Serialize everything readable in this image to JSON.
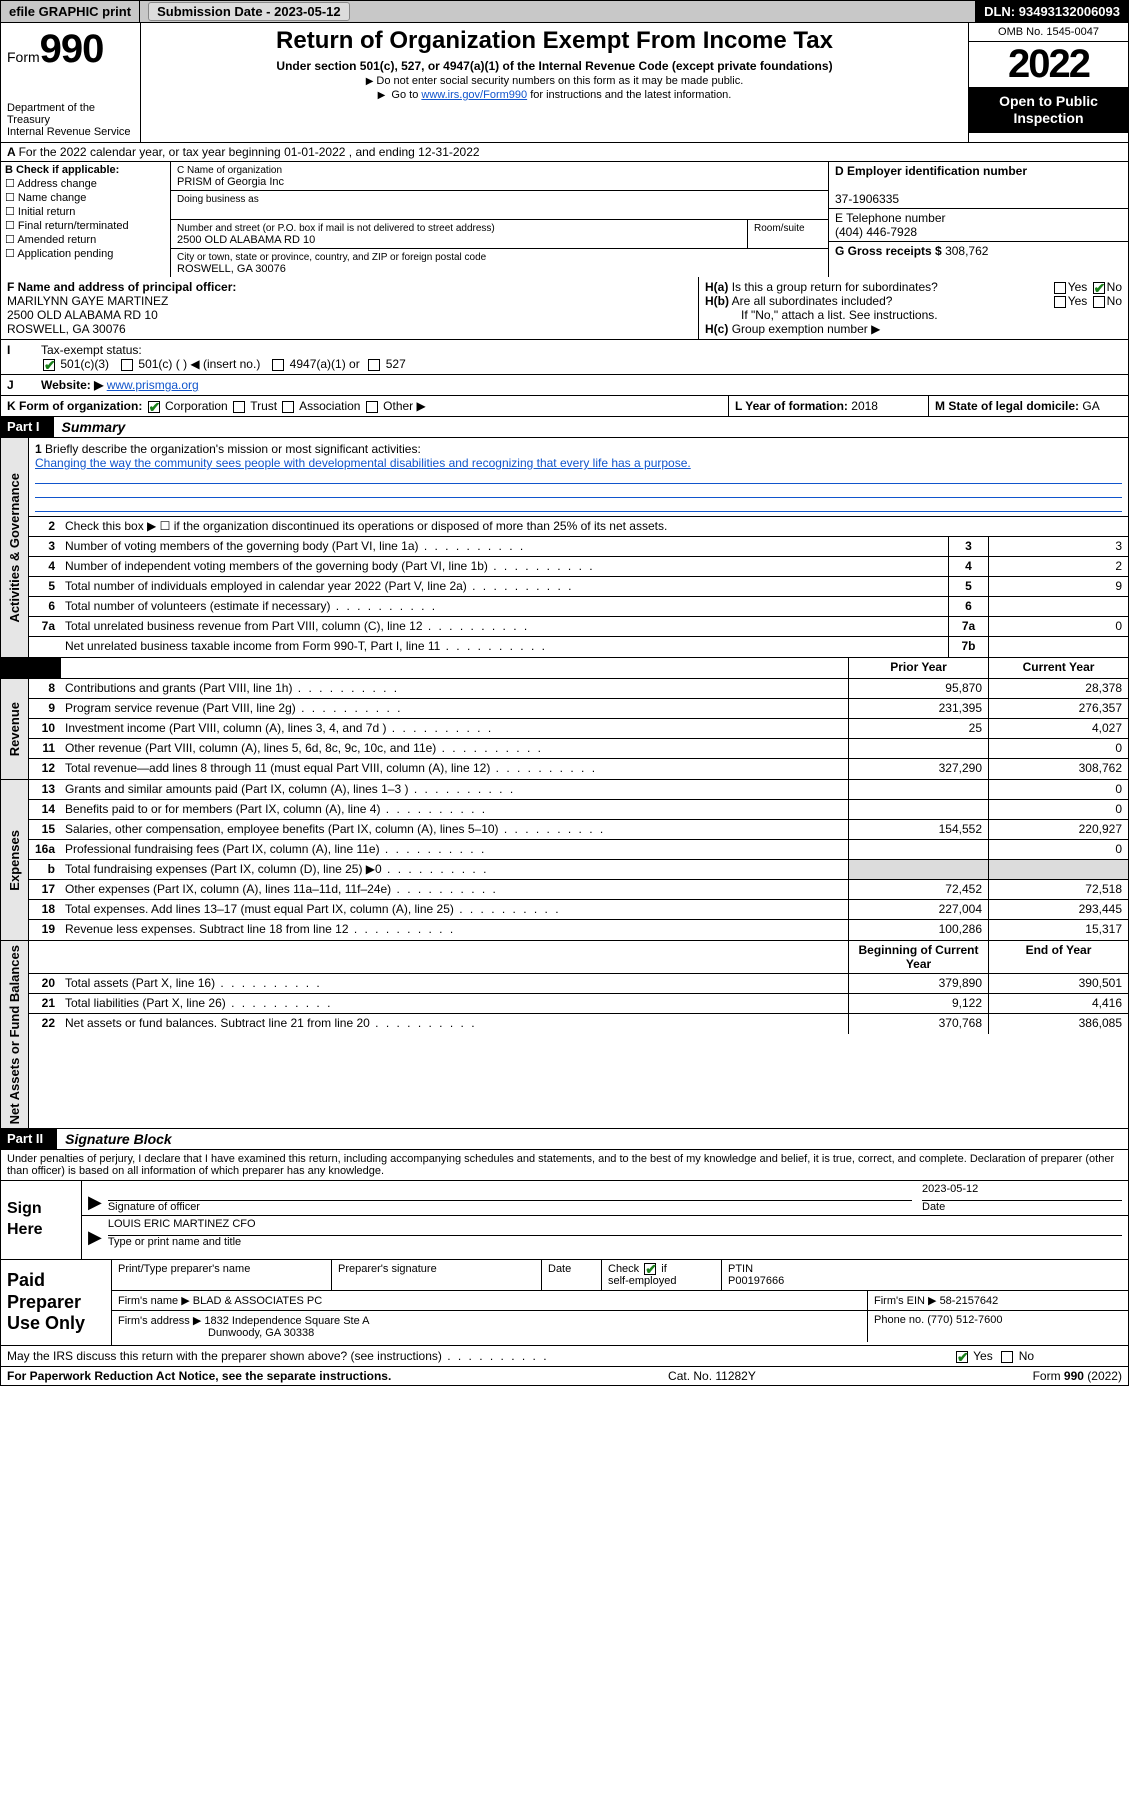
{
  "topbar": {
    "efile": "efile GRAPHIC print",
    "subdate_label": "Submission Date - ",
    "subdate": "2023-05-12",
    "dln_label": "DLN: ",
    "dln": "93493132006093"
  },
  "hdr": {
    "form_prefix": "Form",
    "form_num": "990",
    "dept": "Department of the Treasury",
    "irs": "Internal Revenue Service",
    "title": "Return of Organization Exempt From Income Tax",
    "subtitle": "Under section 501(c), 527, or 4947(a)(1) of the Internal Revenue Code (except private foundations)",
    "note1": "Do not enter social security numbers on this form as it may be made public.",
    "note2_pre": "Go to ",
    "note2_link": "www.irs.gov/Form990",
    "note2_post": " for instructions and the latest information.",
    "omb": "OMB No. 1545-0047",
    "year": "2022",
    "open": "Open to Public Inspection"
  },
  "A": {
    "text": "For the 2022 calendar year, or tax year beginning 01-01-2022   , and ending 12-31-2022"
  },
  "B": {
    "label": "B Check if applicable:",
    "items": [
      "Address change",
      "Name change",
      "Initial return",
      "Final return/terminated",
      "Amended return",
      "Application pending"
    ]
  },
  "C": {
    "name_label": "C Name of organization",
    "name": "PRISM of Georgia Inc",
    "dba_label": "Doing business as",
    "street_label": "Number and street (or P.O. box if mail is not delivered to street address)",
    "room_label": "Room/suite",
    "street": "2500 OLD ALABAMA RD 10",
    "city_label": "City or town, state or province, country, and ZIP or foreign postal code",
    "city": "ROSWELL, GA  30076"
  },
  "D": {
    "label": "D Employer identification number",
    "val": "37-1906335"
  },
  "E": {
    "label": "E Telephone number",
    "val": "(404) 446-7928"
  },
  "G": {
    "label": "G Gross receipts $",
    "val": "308,762"
  },
  "F": {
    "label": "F  Name and address of principal officer:",
    "name": "MARILYNN GAYE MARTINEZ",
    "addr1": "2500 OLD ALABAMA RD 10",
    "addr2": "ROSWELL, GA  30076"
  },
  "H": {
    "a": "Is this a group return for subordinates?",
    "b": "Are all subordinates included?",
    "bnote": "If \"No,\" attach a list. See instructions.",
    "c": "Group exemption number ▶",
    "yes": "Yes",
    "no": "No"
  },
  "I": {
    "label": "Tax-exempt status:",
    "c1": "501(c)(3)",
    "c2": "501(c) (    ) ◀ (insert no.)",
    "c3": "4947(a)(1) or",
    "c4": "527"
  },
  "J": {
    "label": "Website: ▶",
    "val": "www.prismga.org"
  },
  "K": {
    "label": "K Form of organization:",
    "opts": [
      "Corporation",
      "Trust",
      "Association",
      "Other ▶"
    ]
  },
  "L": {
    "label": "L Year of formation:",
    "val": "2018"
  },
  "M": {
    "label": "M State of legal domicile:",
    "val": "GA"
  },
  "partI": {
    "tag": "Part I",
    "title": "Summary"
  },
  "gov": {
    "vtab": "Activities & Governance",
    "r1_label": "Briefly describe the organization's mission or most significant activities:",
    "r1_mission": "Changing the way the community sees people with developmental disabilities and recognizing that every life has a purpose.",
    "r2": "Check this box ▶ ☐  if the organization discontinued its operations or disposed of more than 25% of its net assets.",
    "rows": [
      {
        "n": "3",
        "t": "Number of voting members of the governing body (Part VI, line 1a)",
        "box": "3",
        "v": "3"
      },
      {
        "n": "4",
        "t": "Number of independent voting members of the governing body (Part VI, line 1b)",
        "box": "4",
        "v": "2"
      },
      {
        "n": "5",
        "t": "Total number of individuals employed in calendar year 2022 (Part V, line 2a)",
        "box": "5",
        "v": "9"
      },
      {
        "n": "6",
        "t": "Total number of volunteers (estimate if necessary)",
        "box": "6",
        "v": ""
      },
      {
        "n": "7a",
        "t": "Total unrelated business revenue from Part VIII, column (C), line 12",
        "box": "7a",
        "v": "0"
      },
      {
        "n": "",
        "t": "Net unrelated business taxable income from Form 990-T, Part I, line 11",
        "box": "7b",
        "v": ""
      }
    ]
  },
  "colhdrs": {
    "prior": "Prior Year",
    "current": "Current Year",
    "boy": "Beginning of Current Year",
    "eoy": "End of Year"
  },
  "rev": {
    "vtab": "Revenue",
    "rows": [
      {
        "n": "8",
        "t": "Contributions and grants (Part VIII, line 1h)",
        "p": "95,870",
        "c": "28,378"
      },
      {
        "n": "9",
        "t": "Program service revenue (Part VIII, line 2g)",
        "p": "231,395",
        "c": "276,357"
      },
      {
        "n": "10",
        "t": "Investment income (Part VIII, column (A), lines 3, 4, and 7d )",
        "p": "25",
        "c": "4,027"
      },
      {
        "n": "11",
        "t": "Other revenue (Part VIII, column (A), lines 5, 6d, 8c, 9c, 10c, and 11e)",
        "p": "",
        "c": "0"
      },
      {
        "n": "12",
        "t": "Total revenue—add lines 8 through 11 (must equal Part VIII, column (A), line 12)",
        "p": "327,290",
        "c": "308,762"
      }
    ]
  },
  "exp": {
    "vtab": "Expenses",
    "rows": [
      {
        "n": "13",
        "t": "Grants and similar amounts paid (Part IX, column (A), lines 1–3 )",
        "p": "",
        "c": "0"
      },
      {
        "n": "14",
        "t": "Benefits paid to or for members (Part IX, column (A), line 4)",
        "p": "",
        "c": "0"
      },
      {
        "n": "15",
        "t": "Salaries, other compensation, employee benefits (Part IX, column (A), lines 5–10)",
        "p": "154,552",
        "c": "220,927"
      },
      {
        "n": "16a",
        "t": "Professional fundraising fees (Part IX, column (A), line 11e)",
        "p": "",
        "c": "0"
      },
      {
        "n": "b",
        "t": "Total fundraising expenses (Part IX, column (D), line 25) ▶0",
        "p": "",
        "c": "",
        "shade": true
      },
      {
        "n": "17",
        "t": "Other expenses (Part IX, column (A), lines 11a–11d, 11f–24e)",
        "p": "72,452",
        "c": "72,518"
      },
      {
        "n": "18",
        "t": "Total expenses. Add lines 13–17 (must equal Part IX, column (A), line 25)",
        "p": "227,004",
        "c": "293,445"
      },
      {
        "n": "19",
        "t": "Revenue less expenses. Subtract line 18 from line 12",
        "p": "100,286",
        "c": "15,317"
      }
    ]
  },
  "net": {
    "vtab": "Net Assets or Fund Balances",
    "rows": [
      {
        "n": "20",
        "t": "Total assets (Part X, line 16)",
        "p": "379,890",
        "c": "390,501"
      },
      {
        "n": "21",
        "t": "Total liabilities (Part X, line 26)",
        "p": "9,122",
        "c": "4,416"
      },
      {
        "n": "22",
        "t": "Net assets or fund balances. Subtract line 21 from line 20",
        "p": "370,768",
        "c": "386,085"
      }
    ]
  },
  "partII": {
    "tag": "Part II",
    "title": "Signature Block"
  },
  "sig": {
    "intro": "Under penalties of perjury, I declare that I have examined this return, including accompanying schedules and statements, and to the best of my knowledge and belief, it is true, correct, and complete. Declaration of preparer (other than officer) is based on all information of which preparer has any knowledge.",
    "here": "Sign Here",
    "sig_label": "Signature of officer",
    "date_label": "Date",
    "date": "2023-05-12",
    "name": "LOUIS ERIC MARTINEZ CFO",
    "name_label": "Type or print name and title"
  },
  "prep": {
    "title": "Paid Preparer Use Only",
    "h": [
      "Print/Type preparer's name",
      "Preparer's signature",
      "Date"
    ],
    "check_label": "Check",
    "self_emp": "self-employed",
    "ptin_label": "PTIN",
    "ptin": "P00197666",
    "firm_label": "Firm's name   ▶",
    "firm": "BLAD & ASSOCIATES PC",
    "ein_label": "Firm's EIN ▶",
    "ein": "58-2157642",
    "addr_label": "Firm's address ▶",
    "addr1": "1832 Independence Square Ste A",
    "addr2": "Dunwoody, GA  30338",
    "phone_label": "Phone no.",
    "phone": "(770) 512-7600"
  },
  "discuss": {
    "q": "May the IRS discuss this return with the preparer shown above? (see instructions)",
    "yes": "Yes",
    "no": "No"
  },
  "footer": {
    "l": "For Paperwork Reduction Act Notice, see the separate instructions.",
    "m": "Cat. No. 11282Y",
    "r": "Form 990 (2022)"
  }
}
